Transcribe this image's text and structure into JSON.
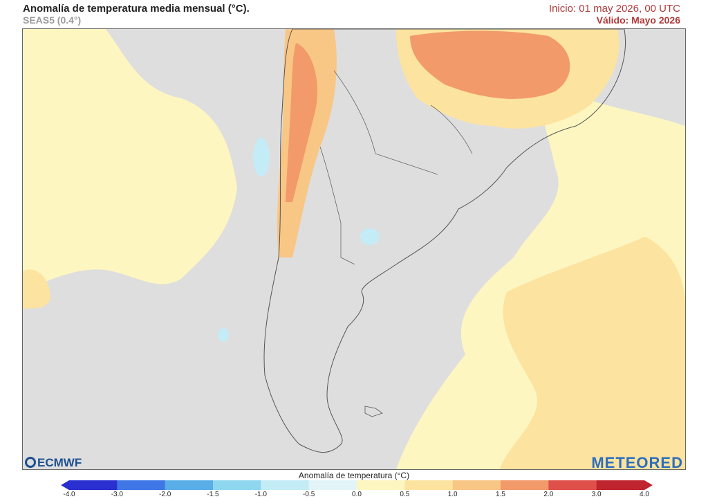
{
  "header": {
    "title": "Anomalía de temperatura media mensual (°C).",
    "subtitle": "SEAS5 (0.4°)",
    "init": "Inicio: 01 may 2026, 00 UTC",
    "valid": "Válido: Mayo 2026"
  },
  "logos": {
    "left": "ECMWF",
    "right": "METEORED"
  },
  "colorbar": {
    "title": "Anomalía de temperatura (°C)",
    "ticks": [
      "-4.0",
      "-3.0",
      "-2.0",
      "-1.5",
      "-1.0",
      "-0.5",
      "0.0",
      "0.5",
      "1.0",
      "1.5",
      "2.0",
      "3.0",
      "4.0"
    ],
    "colors": [
      "#2a2fd0",
      "#3f78e6",
      "#5aaee8",
      "#8fd7ef",
      "#c4ecf6",
      "#e2f4f8",
      "#dedede",
      "#fdf6c0",
      "#fde3a0",
      "#f8c685",
      "#f29a6a",
      "#e0504a",
      "#c0242e"
    ]
  }
}
